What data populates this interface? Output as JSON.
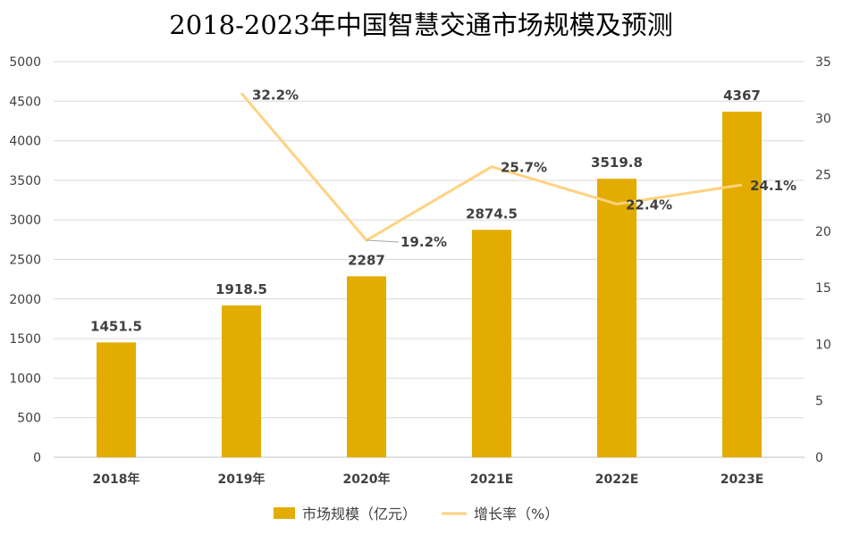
{
  "chart_data": {
    "type": "bar+line",
    "title": "2018-2023年中国智慧交通市场规模及预测",
    "categories": [
      "2018年",
      "2019年",
      "2020年",
      "2021E",
      "2022E",
      "2023E"
    ],
    "series": [
      {
        "name": "市场规模（亿元）",
        "type": "bar",
        "axis": "left",
        "values": [
          1451.5,
          1918.5,
          2287,
          2874.5,
          3519.8,
          4367
        ],
        "labels": [
          "1451.5",
          "1918.5",
          "2287",
          "2874.5",
          "3519.8",
          "4367"
        ],
        "color": "#E2AC00"
      },
      {
        "name": "增长率（%）",
        "type": "line",
        "axis": "right",
        "values": [
          null,
          32.2,
          19.2,
          25.7,
          22.4,
          24.1
        ],
        "labels": [
          "",
          "32.2%",
          "19.2%",
          "25.7%",
          "22.4%",
          "24.1%"
        ],
        "color": "#FFD27F"
      }
    ],
    "y_left": {
      "min": 0,
      "max": 5000,
      "step": 500,
      "ticks": [
        "0",
        "500",
        "1000",
        "1500",
        "2000",
        "2500",
        "3000",
        "3500",
        "4000",
        "4500",
        "5000"
      ]
    },
    "y_right": {
      "min": 0,
      "max": 35,
      "step": 5,
      "ticks": [
        "0",
        "5",
        "10",
        "15",
        "20",
        "25",
        "30",
        "35"
      ]
    },
    "grid": true,
    "legend": "bottom"
  }
}
